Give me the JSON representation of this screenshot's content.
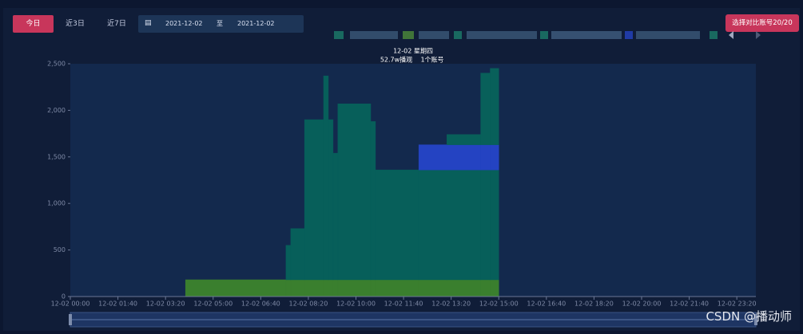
{
  "toolbar": {
    "today": "今日",
    "last3": "近3日",
    "last7": "近7日",
    "date_start": "2021-12-02",
    "date_sep": "至",
    "date_end": "2021-12-02",
    "compare": "选择对比账号20/20"
  },
  "tooltip": {
    "date": "12-02 星期四",
    "views": "52.7w播观",
    "accounts": "1个账号"
  },
  "watermark": "CSDN @播动师",
  "chart_data": {
    "type": "histogram",
    "stacked": true,
    "bins": [
      242,
      453,
      463,
      492,
      532,
      542,
      552,
      562,
      631,
      641,
      732,
      791,
      862,
      882,
      900
    ],
    "series": [
      {
        "color": "#3a7f2e",
        "values": [
          180,
          180,
          180,
          180,
          180,
          180,
          180,
          180,
          180,
          180,
          180,
          180,
          180,
          180
        ]
      },
      {
        "color": "#075f5a",
        "values": [
          0,
          370,
          550,
          1720,
          2190,
          1720,
          1360,
          1890,
          1700,
          1180,
          1180,
          1180,
          1180,
          1180
        ]
      },
      {
        "color": "#2443c2",
        "values": [
          0,
          0,
          0,
          0,
          0,
          0,
          0,
          0,
          0,
          0,
          270,
          270,
          270,
          270
        ]
      },
      {
        "color": "#08605a",
        "values": [
          0,
          0,
          0,
          0,
          0,
          0,
          0,
          0,
          0,
          0,
          0,
          110,
          770,
          820
        ]
      }
    ],
    "xlim": [
      0,
      1440
    ],
    "ylim": [
      0,
      2500
    ],
    "xticks": [
      {
        "value": 0,
        "label": "12-02 00:00"
      },
      {
        "value": 100,
        "label": "12-02 01:40"
      },
      {
        "value": 200,
        "label": "12-02 03:20"
      },
      {
        "value": 300,
        "label": "12-02 05:00"
      },
      {
        "value": 400,
        "label": "12-02 06:40"
      },
      {
        "value": 500,
        "label": "12-02 08:20"
      },
      {
        "value": 600,
        "label": "12-02 10:00"
      },
      {
        "value": 700,
        "label": "12-02 11:40"
      },
      {
        "value": 800,
        "label": "12-02 13:20"
      },
      {
        "value": 900,
        "label": "12-02 15:00"
      },
      {
        "value": 1000,
        "label": "12-02 16:40"
      },
      {
        "value": 1100,
        "label": "12-02 18:20"
      },
      {
        "value": 1200,
        "label": "12-02 20:00"
      },
      {
        "value": 1300,
        "label": "12-02 21:40"
      },
      {
        "value": 1400,
        "label": "12-02 23:20"
      }
    ],
    "yticks": [
      0,
      500,
      {
        "value": 1000,
        "label": "1,000"
      },
      {
        "value": 1500,
        "label": "1,500"
      },
      {
        "value": 2000,
        "label": "2,000"
      },
      {
        "value": 2500,
        "label": "2,500"
      }
    ]
  }
}
